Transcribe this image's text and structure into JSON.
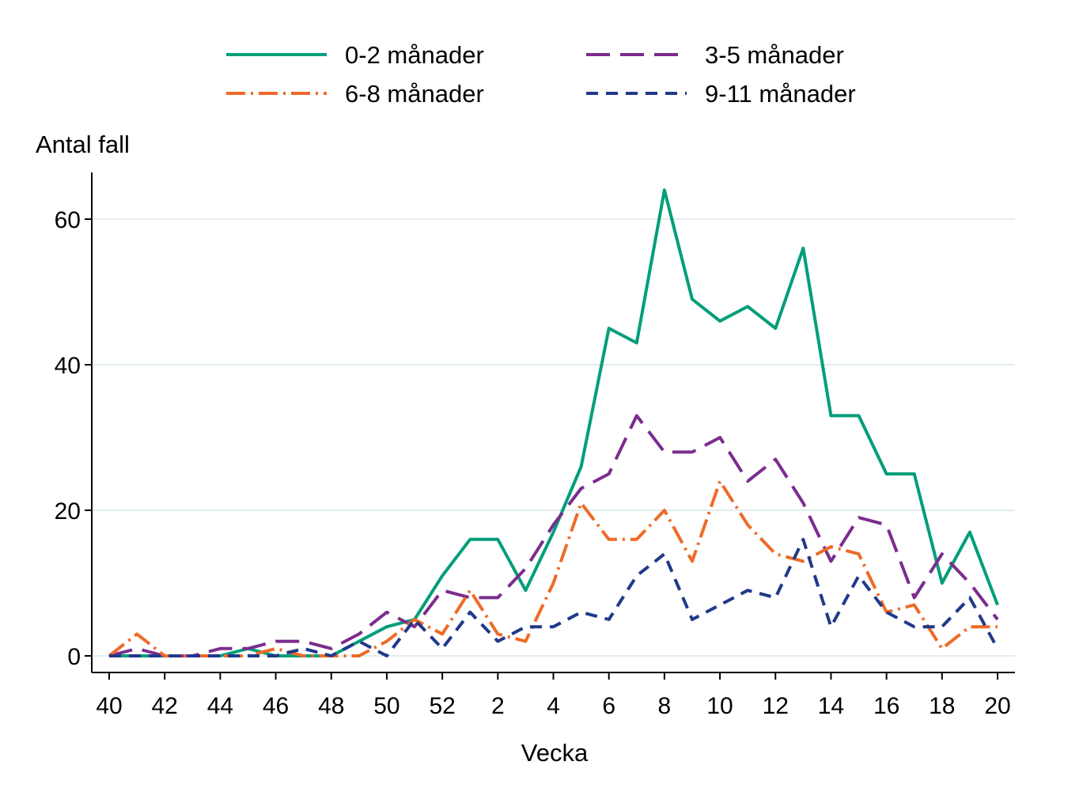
{
  "chart_data": {
    "type": "line",
    "xlabel": "Vecka",
    "ylabel": "Antal fall",
    "x": [
      "40",
      "41",
      "42",
      "43",
      "44",
      "45",
      "46",
      "47",
      "48",
      "49",
      "50",
      "51",
      "52",
      "1",
      "2",
      "3",
      "4",
      "5",
      "6",
      "7",
      "8",
      "9",
      "10",
      "11",
      "12",
      "13",
      "14",
      "15",
      "16",
      "17",
      "18",
      "19",
      "20"
    ],
    "x_tick_labels": [
      "40",
      "42",
      "44",
      "46",
      "48",
      "50",
      "52",
      "2",
      "4",
      "6",
      "8",
      "10",
      "12",
      "14",
      "16",
      "18",
      "20"
    ],
    "y_ticks": [
      0,
      20,
      40,
      60
    ],
    "ylim": [
      0,
      66
    ],
    "grid": true,
    "legend_position": "top",
    "series": [
      {
        "name": "0-2 månader",
        "color": "#009e7a",
        "dash": "solid",
        "values": [
          0,
          0,
          0,
          0,
          0,
          1,
          0,
          0,
          0,
          2,
          4,
          5,
          11,
          16,
          16,
          9,
          17,
          26,
          45,
          43,
          64,
          49,
          46,
          48,
          45,
          56,
          33,
          33,
          25,
          25,
          10,
          17,
          7
        ]
      },
      {
        "name": "3-5 månader",
        "color": "#7b2d8e",
        "dash": "long-dash",
        "values": [
          0,
          1,
          0,
          0,
          1,
          1,
          2,
          2,
          1,
          3,
          6,
          4,
          9,
          8,
          8,
          12,
          18,
          23,
          25,
          33,
          28,
          28,
          30,
          24,
          27,
          21,
          13,
          19,
          18,
          8,
          14,
          10,
          5
        ]
      },
      {
        "name": "6-8 månader",
        "color": "#ee6b27",
        "dash": "dash-dot",
        "values": [
          0,
          3,
          0,
          0,
          0,
          0,
          1,
          0,
          0,
          0,
          2,
          5,
          3,
          9,
          3,
          2,
          10,
          21,
          16,
          16,
          20,
          13,
          24,
          18,
          14,
          13,
          15,
          14,
          6,
          7,
          1,
          4,
          4
        ]
      },
      {
        "name": "9-11 månader",
        "color": "#21398a",
        "dash": "short-dash",
        "values": [
          0,
          0,
          0,
          0,
          0,
          0,
          0,
          1,
          0,
          2,
          0,
          5,
          1,
          6,
          2,
          4,
          4,
          6,
          5,
          11,
          14,
          5,
          7,
          9,
          8,
          16,
          4,
          11,
          6,
          4,
          4,
          8,
          1
        ]
      }
    ]
  }
}
